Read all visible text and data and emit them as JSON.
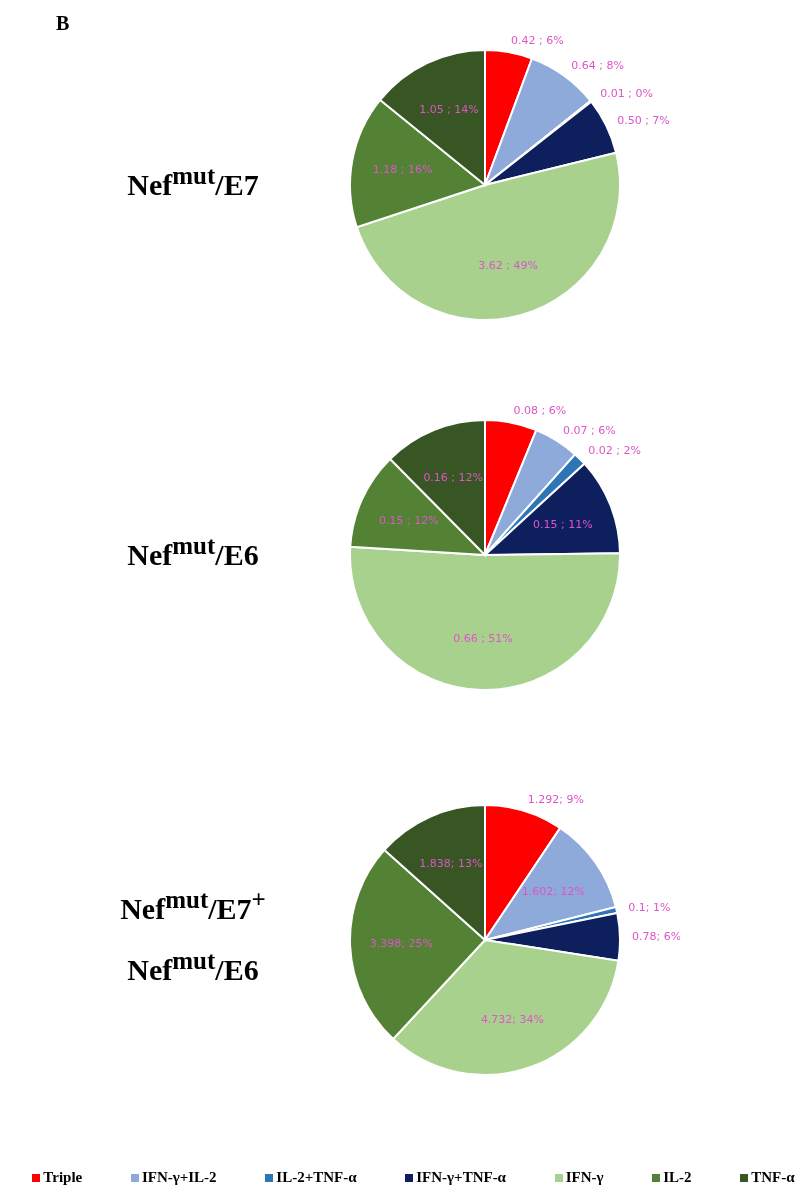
{
  "chart_data": [
    {
      "type": "pie",
      "title": "Nef$^{mut}$/E7",
      "annotations": [
        "B"
      ],
      "categories": [
        null,
        null,
        null,
        null,
        null,
        null,
        null
      ],
      "values": [
        0.42,
        0.64,
        0.01,
        0.5,
        3.62,
        1.18,
        1.05
      ],
      "value_labels": [
        "0.42 ; 6%",
        "0.64 ; 8%",
        "0.01 ; 0%",
        "0.50 ; 7%",
        "3.62 ; 49%",
        "1.18 ; 16%",
        "1.05 ; 14%"
      ],
      "colors": [
        "#ff0000",
        "#8eaadb",
        "#2e75b6",
        "#0d1f5c",
        "#a9d18e",
        "#548235",
        "#375623"
      ]
    },
    {
      "type": "pie",
      "title": "Nef$^{mut}$/E6",
      "categories": [
        null,
        null,
        null,
        null,
        null,
        null,
        null
      ],
      "values": [
        0.08,
        0.07,
        0.02,
        0.15,
        0.66,
        0.15,
        0.16
      ],
      "value_labels": [
        "0.08 ; 6%",
        "0.07 ; 6%",
        "0.02 ; 2%",
        "0.15 ; 11%",
        "0.66 ; 51%",
        "0.15 ; 12%",
        "0.16 ; 12%"
      ],
      "colors": [
        "#ff0000",
        "#8eaadb",
        "#2e75b6",
        "#0d1f5c",
        "#a9d18e",
        "#548235",
        "#375623"
      ]
    },
    {
      "type": "pie",
      "title": "Nef$^{mut}$/E7$^{+}$ Nef$^{mut}$/E6",
      "categories": [
        "Triple",
        "IFN-γ+IL-2",
        "IL-2+TNF-α",
        "IFN-γ+TNF-α",
        "IFN-γ",
        "IL-2",
        "TNF-α"
      ],
      "values": [
        1.292,
        1.602,
        0.1,
        0.78,
        4.732,
        3.398,
        1.838
      ],
      "value_labels": [
        "1.292; 9%",
        "1.602; 12%",
        "0.1; 1%",
        "0.78; 6%",
        "4.732; 34%",
        "3.398; 25%",
        "1.838; 13%"
      ],
      "colors": [
        "#ff0000",
        "#8eaadb",
        "#2e75b6",
        "#0d1f5c",
        "#a9d18e",
        "#548235",
        "#375623"
      ],
      "legend": "bottom"
    }
  ]
}
